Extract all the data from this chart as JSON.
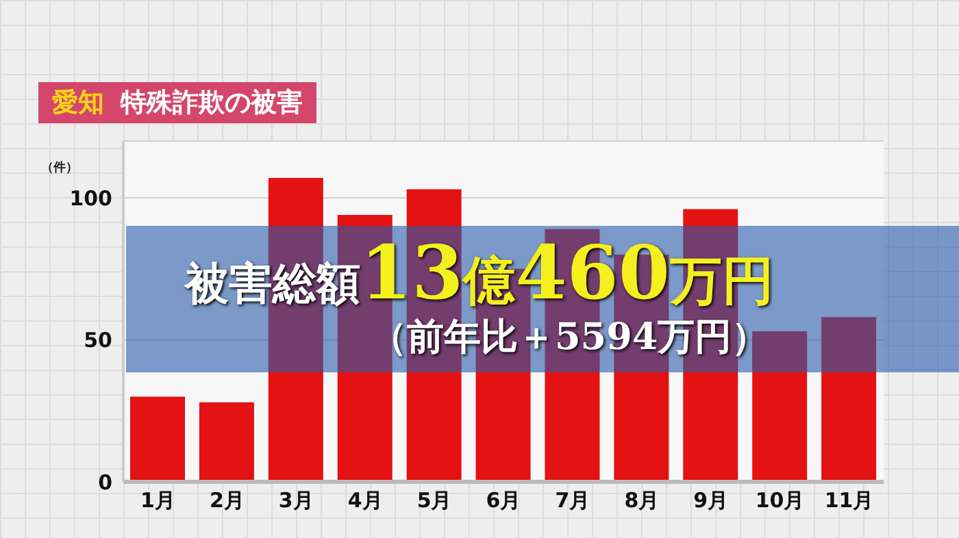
{
  "chart_data": {
    "type": "bar",
    "title": "愛知",
    "subtitle": "特殊詐欺の被害",
    "ylabel": "（件）",
    "categories": [
      "1月",
      "2月",
      "3月",
      "4月",
      "5月",
      "6月",
      "7月",
      "8月",
      "9月",
      "10月",
      "11月"
    ],
    "values": [
      30,
      28,
      107,
      94,
      103,
      75,
      89,
      80,
      96,
      53,
      58
    ],
    "color": "#e41213",
    "ylim": [
      0,
      120
    ],
    "yticks": [
      0,
      50,
      100
    ],
    "grid": "y",
    "annotations": [
      "被害総額13億460万円",
      "（前年比＋5594万円）"
    ]
  }
}
